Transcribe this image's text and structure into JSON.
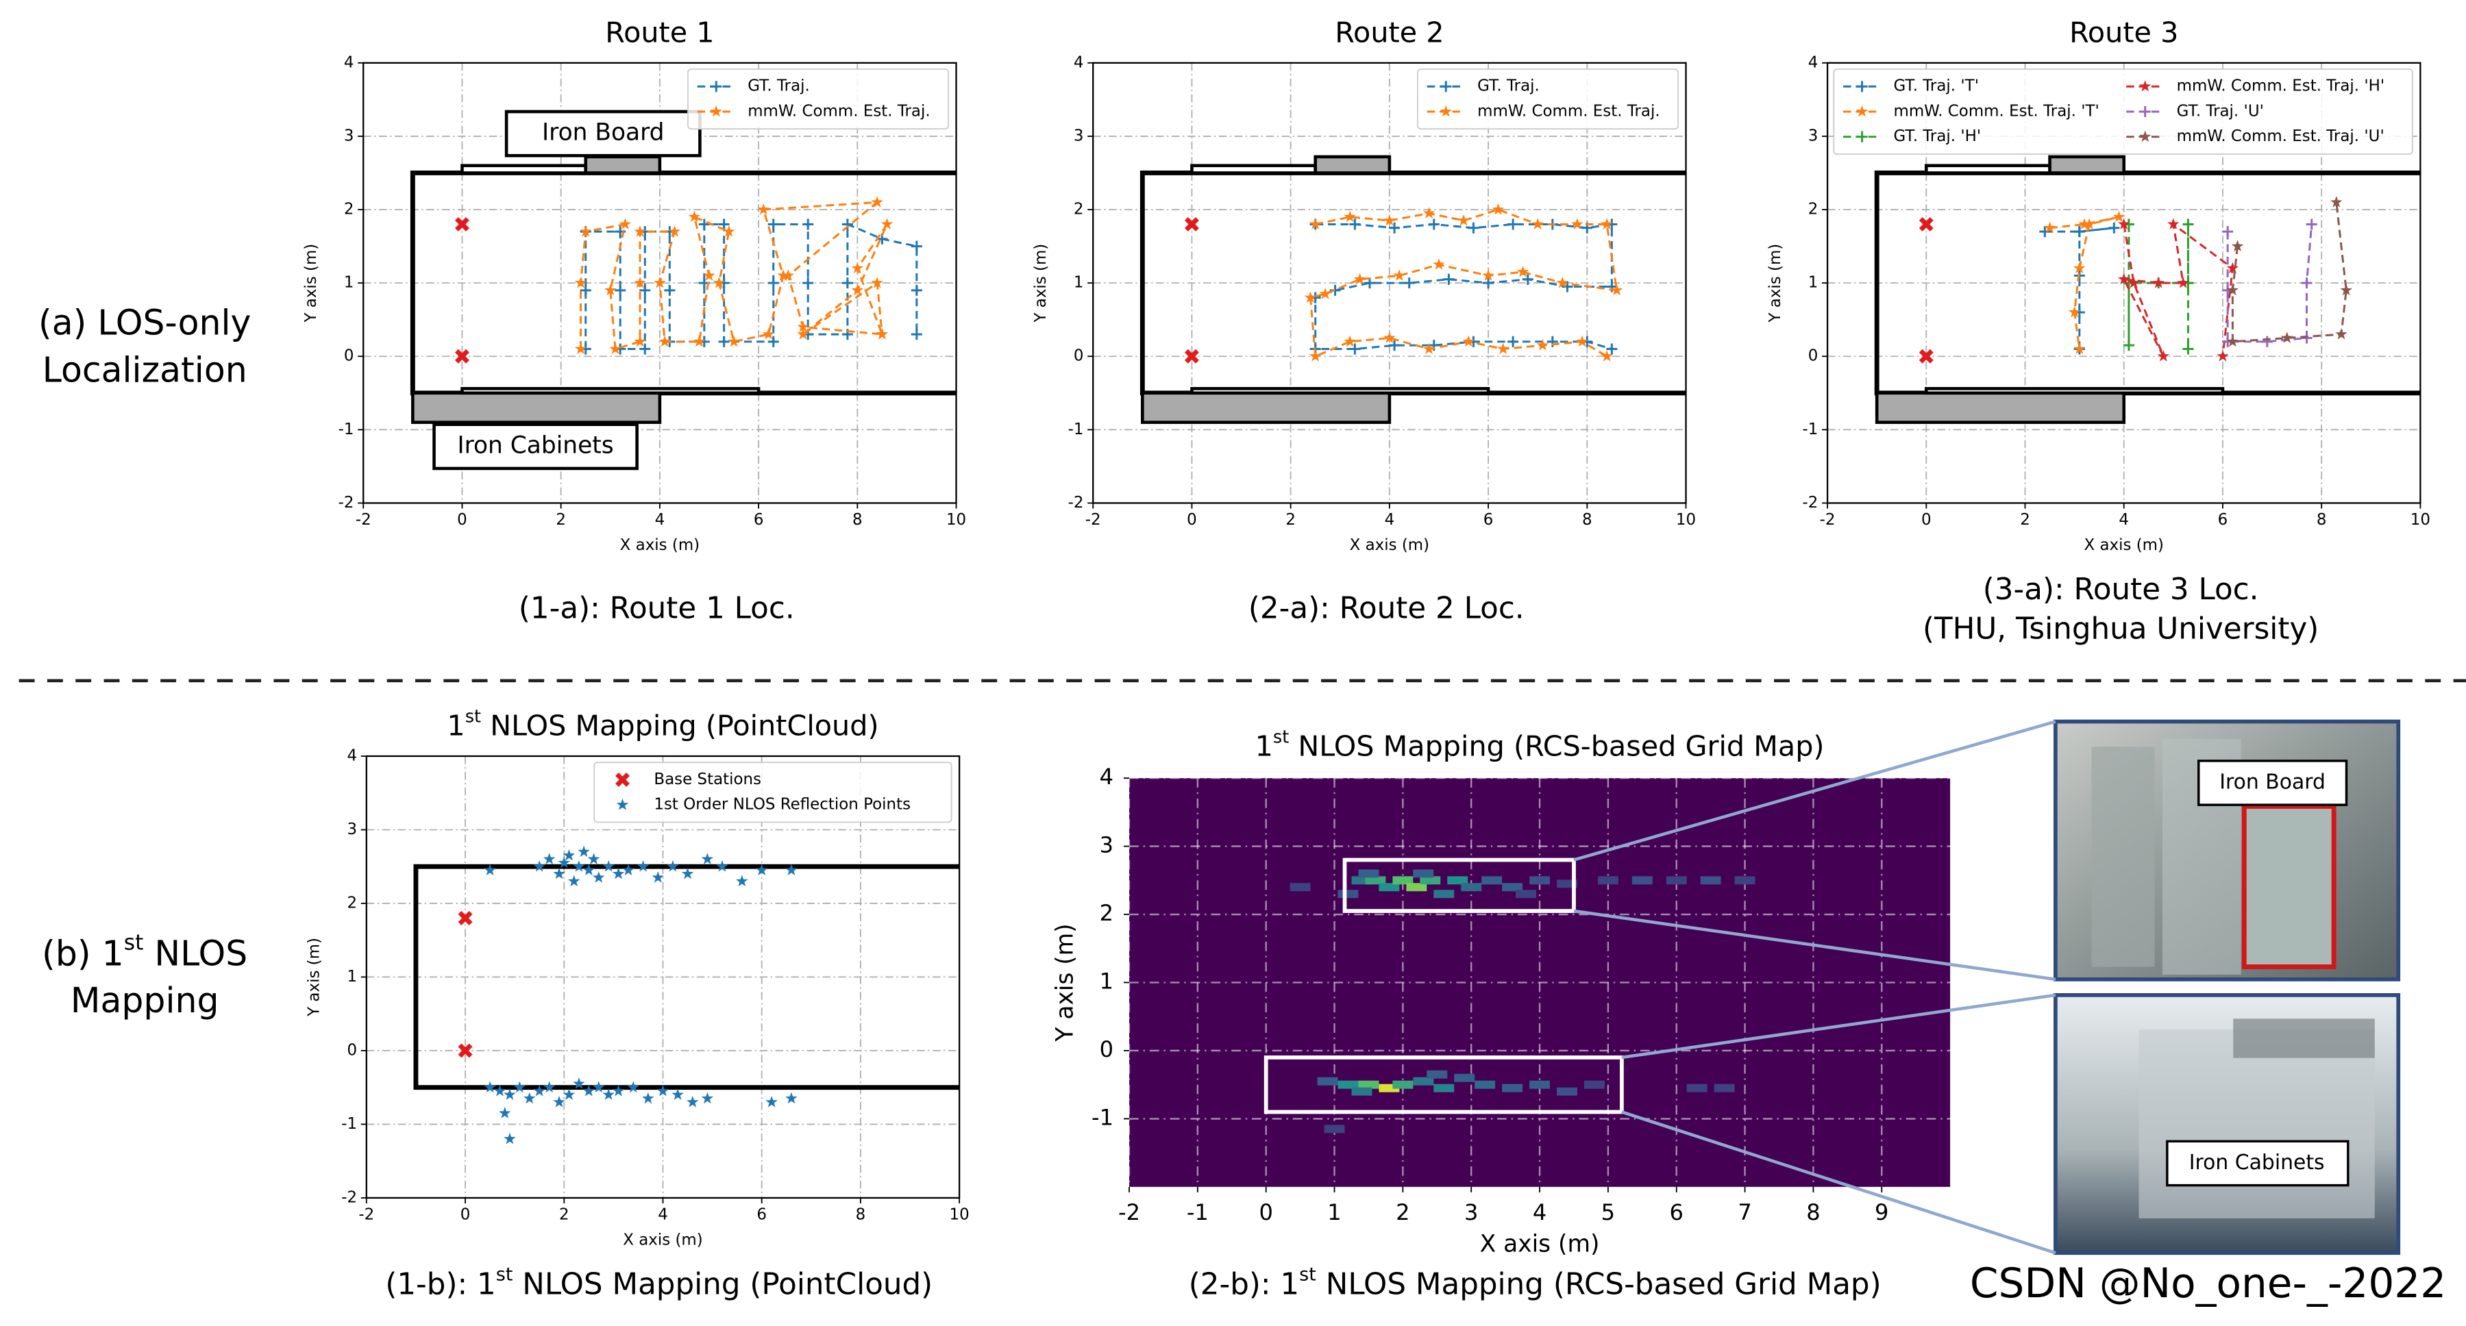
{
  "row_labels": [
    [
      "(a) LOS-only",
      "Localization"
    ],
    [
      [
        "(b) 1",
        "st",
        " NLOS"
      ],
      "Mapping"
    ]
  ],
  "photos": [
    {
      "label": "Iron Board"
    },
    {
      "label": "Iron Cabinets"
    }
  ],
  "watermark": "CSDN @No_one-_-2022",
  "chart_data": [
    {
      "type": "line",
      "title": "Route 1",
      "xlabel": "X axis (m)",
      "ylabel": "Y axis (m)",
      "caption": "(1-a): Route 1 Loc.",
      "xlim": [
        -2,
        10
      ],
      "ylim": [
        -2,
        4
      ],
      "xticks": [
        -2,
        0,
        2,
        4,
        6,
        8,
        10
      ],
      "yticks": [
        -2,
        -1,
        0,
        1,
        2,
        3,
        4
      ],
      "grid": true,
      "legend": "upper right",
      "legend_columns": 1,
      "annotations": [
        "Iron Board",
        "Iron Cabinets"
      ],
      "base_stations": {
        "color": "#e31a1c",
        "x": [
          0,
          0
        ],
        "y": [
          1.8,
          0
        ]
      },
      "series": [
        {
          "name": "GT. Traj.",
          "color": "#1f77b4",
          "marker": "+",
          "x": [
            2.5,
            2.5,
            2.5,
            3.2,
            3.2,
            3.2,
            3.7,
            3.7,
            3.7,
            4.2,
            4.2,
            4.2,
            4.9,
            4.9,
            4.9,
            5.3,
            5.3,
            5.3,
            6.3,
            6.3,
            6.3,
            7.0,
            7.0,
            7.0,
            7.8,
            7.8,
            7.8,
            8.5,
            9.2,
            9.2,
            9.2
          ],
          "y": [
            0.1,
            0.9,
            1.7,
            1.7,
            0.9,
            0.1,
            0.1,
            0.9,
            1.7,
            1.7,
            0.9,
            0.2,
            0.2,
            1.0,
            1.8,
            1.8,
            1.0,
            0.2,
            0.2,
            1.0,
            1.8,
            1.8,
            1.0,
            0.3,
            0.3,
            1.0,
            1.8,
            1.6,
            1.5,
            0.9,
            0.3
          ]
        },
        {
          "name": "mmW. Comm. Est. Traj.",
          "color": "#ff7f0e",
          "marker": "*",
          "x": [
            2.4,
            2.4,
            2.5,
            3.3,
            3.0,
            3.1,
            3.6,
            3.6,
            3.6,
            4.3,
            4.0,
            4.1,
            4.8,
            5.0,
            4.7,
            5.4,
            5.2,
            5.5,
            6.2,
            6.5,
            6.1,
            8.4,
            6.6,
            6.9,
            8.5,
            8.0,
            8.6,
            8.0,
            6.9,
            8.4,
            8.5
          ],
          "y": [
            0.1,
            1.0,
            1.7,
            1.8,
            0.9,
            0.1,
            0.2,
            1.0,
            1.7,
            1.7,
            1.0,
            0.2,
            0.2,
            1.1,
            1.9,
            1.7,
            1.0,
            0.2,
            0.3,
            1.1,
            2.0,
            2.1,
            1.1,
            0.4,
            0.3,
            1.2,
            1.8,
            0.9,
            0.3,
            1.0,
            0.3
          ]
        }
      ]
    },
    {
      "type": "line",
      "title": "Route 2",
      "xlabel": "X axis (m)",
      "ylabel": "Y axis (m)",
      "caption": "(2-a): Route 2 Loc.",
      "xlim": [
        -2,
        10
      ],
      "ylim": [
        -2,
        4
      ],
      "xticks": [
        -2,
        0,
        2,
        4,
        6,
        8,
        10
      ],
      "yticks": [
        -2,
        -1,
        0,
        1,
        2,
        3,
        4
      ],
      "grid": true,
      "legend": "upper right",
      "legend_columns": 1,
      "base_stations": {
        "color": "#e31a1c",
        "x": [
          0,
          0
        ],
        "y": [
          1.8,
          0
        ]
      },
      "series": [
        {
          "name": "GT. Traj.",
          "color": "#1f77b4",
          "marker": "+",
          "x": [
            2.5,
            3.3,
            4.1,
            4.9,
            5.7,
            6.5,
            7.3,
            8.0,
            8.5,
            8.5,
            7.6,
            6.8,
            6.0,
            5.2,
            4.4,
            3.6,
            2.9,
            2.5,
            2.5,
            3.3,
            4.1,
            4.9,
            5.7,
            6.5,
            7.3,
            8.0,
            8.5
          ],
          "y": [
            1.8,
            1.8,
            1.75,
            1.8,
            1.75,
            1.8,
            1.8,
            1.75,
            1.8,
            0.95,
            0.95,
            1.05,
            1.0,
            1.05,
            1.0,
            1.0,
            0.9,
            0.8,
            0.1,
            0.1,
            0.15,
            0.15,
            0.2,
            0.2,
            0.2,
            0.2,
            0.1
          ]
        },
        {
          "name": "mmW. Comm. Est. Traj.",
          "color": "#ff7f0e",
          "marker": "*",
          "x": [
            2.5,
            3.2,
            4.0,
            4.8,
            5.5,
            6.2,
            7.0,
            7.8,
            8.4,
            8.6,
            7.5,
            6.7,
            6.0,
            5.0,
            4.2,
            3.4,
            2.7,
            2.4,
            2.5,
            3.2,
            4.0,
            4.8,
            5.6,
            6.3,
            7.1,
            7.9,
            8.4
          ],
          "y": [
            1.8,
            1.9,
            1.85,
            1.95,
            1.85,
            2.0,
            1.8,
            1.8,
            1.8,
            0.9,
            1.0,
            1.15,
            1.1,
            1.25,
            1.1,
            1.05,
            0.85,
            0.8,
            0.0,
            0.2,
            0.25,
            0.1,
            0.2,
            0.1,
            0.15,
            0.2,
            0.0
          ]
        }
      ]
    },
    {
      "type": "line",
      "title": "Route 3",
      "xlabel": "X axis (m)",
      "ylabel": "Y axis (m)",
      "caption": "(3-a): Route 3 Loc.",
      "subcaption": "(THU, Tsinghua University)",
      "xlim": [
        -2,
        10
      ],
      "ylim": [
        -2,
        4
      ],
      "xticks": [
        -2,
        0,
        2,
        4,
        6,
        8,
        10
      ],
      "yticks": [
        -2,
        -1,
        0,
        1,
        2,
        3,
        4
      ],
      "grid": true,
      "legend": "upper right",
      "legend_columns": 2,
      "base_stations": {
        "color": "#e31a1c",
        "x": [
          0,
          0
        ],
        "y": [
          1.8,
          0
        ]
      },
      "series": [
        {
          "name": "GT. Traj. 'T'",
          "color": "#1f77b4",
          "marker": "+",
          "x": [
            2.4,
            3.1,
            3.8,
            3.1,
            3.1,
            3.1,
            3.1
          ],
          "y": [
            1.7,
            1.7,
            1.75,
            1.7,
            1.1,
            0.6,
            0.1
          ]
        },
        {
          "name": "mmW. Comm. Est. Traj. 'T'",
          "color": "#ff7f0e",
          "marker": "*",
          "x": [
            2.5,
            3.2,
            3.9,
            3.3,
            3.1,
            3.0,
            3.1
          ],
          "y": [
            1.75,
            1.8,
            1.9,
            1.8,
            1.2,
            0.6,
            0.1
          ]
        },
        {
          "name": "GT. Traj. 'H'",
          "color": "#2ca02c",
          "marker": "+",
          "x": [
            4.1,
            4.1,
            4.1,
            4.1,
            4.7,
            5.3,
            5.3,
            5.3,
            5.3
          ],
          "y": [
            1.8,
            1.0,
            0.15,
            1.0,
            1.0,
            1.0,
            1.8,
            1.0,
            0.1
          ]
        },
        {
          "name": "mmW. Comm. Est. Traj. 'H'",
          "color": "#d62728",
          "marker": "*",
          "x": [
            4.0,
            4.2,
            4.8,
            4.0,
            4.7,
            5.2,
            5.0,
            6.2,
            6.0
          ],
          "y": [
            1.8,
            1.0,
            0.0,
            1.05,
            1.0,
            1.0,
            1.8,
            1.2,
            0.0
          ]
        },
        {
          "name": "GT. Traj. 'U'",
          "color": "#9467bd",
          "marker": "+",
          "x": [
            6.1,
            6.1,
            6.1,
            6.9,
            7.7,
            7.7,
            7.8
          ],
          "y": [
            1.7,
            0.9,
            0.2,
            0.2,
            0.25,
            1.0,
            1.8
          ]
        },
        {
          "name": "mmW. Comm. Est. Traj. 'U'",
          "color": "#8c564b",
          "marker": "*",
          "x": [
            6.3,
            6.2,
            6.2,
            7.3,
            8.4,
            8.5,
            8.3
          ],
          "y": [
            1.5,
            0.9,
            0.2,
            0.25,
            0.3,
            0.9,
            2.1
          ]
        }
      ]
    },
    {
      "type": "scatter",
      "title": [
        "1",
        "st",
        " NLOS Mapping (PointCloud)"
      ],
      "xlabel": "X axis (m)",
      "ylabel": "Y axis (m)",
      "caption": [
        "(1-b): 1",
        "st",
        " NLOS Mapping (PointCloud)"
      ],
      "xlim": [
        -2,
        10
      ],
      "ylim": [
        -2,
        4
      ],
      "xticks": [
        -2,
        0,
        2,
        4,
        6,
        8,
        10
      ],
      "yticks": [
        -2,
        -1,
        0,
        1,
        2,
        3,
        4
      ],
      "grid": true,
      "legend": "upper right",
      "legend_columns": 1,
      "series": [
        {
          "name": "Base Stations",
          "color": "#e31a1c",
          "marker": "x",
          "x": [
            0,
            0
          ],
          "y": [
            1.8,
            0
          ]
        },
        {
          "name": "1st Order NLOS Reflection Points",
          "color": "#1f77b4",
          "marker": "*",
          "x": [
            0.5,
            1.5,
            1.7,
            1.9,
            2.0,
            2.1,
            2.2,
            2.3,
            2.4,
            2.5,
            2.6,
            2.7,
            2.9,
            3.1,
            3.3,
            3.6,
            3.9,
            4.2,
            4.5,
            4.9,
            5.2,
            5.6,
            6.0,
            6.6,
            0.5,
            0.7,
            0.9,
            1.1,
            1.3,
            1.5,
            1.7,
            1.9,
            2.1,
            2.3,
            2.5,
            2.7,
            2.9,
            3.1,
            3.4,
            3.7,
            4.0,
            4.3,
            4.6,
            4.9,
            6.2,
            6.6,
            0.9,
            0.8
          ],
          "y": [
            2.45,
            2.5,
            2.6,
            2.4,
            2.55,
            2.65,
            2.3,
            2.5,
            2.7,
            2.45,
            2.6,
            2.35,
            2.5,
            2.4,
            2.45,
            2.5,
            2.35,
            2.5,
            2.4,
            2.6,
            2.5,
            2.3,
            2.45,
            2.45,
            -0.5,
            -0.55,
            -0.6,
            -0.5,
            -0.65,
            -0.55,
            -0.5,
            -0.7,
            -0.6,
            -0.45,
            -0.55,
            -0.5,
            -0.6,
            -0.55,
            -0.5,
            -0.65,
            -0.55,
            -0.6,
            -0.7,
            -0.65,
            -0.7,
            -0.65,
            -1.2,
            -0.85
          ]
        }
      ]
    },
    {
      "type": "heatmap",
      "title": [
        "1",
        "st",
        " NLOS Mapping (RCS-based Grid Map)"
      ],
      "xlabel": "X axis (m)",
      "ylabel": "Y axis (m)",
      "caption": [
        "(2-b): 1",
        "st",
        " NLOS Mapping (RCS-based Grid Map)"
      ],
      "xlim": [
        -2,
        10
      ],
      "ylim": [
        -2,
        4
      ],
      "xticks": [
        -2,
        -1,
        0,
        1,
        2,
        3,
        4,
        5,
        6,
        7,
        8,
        9
      ],
      "yticks": [
        -1,
        0,
        1,
        2,
        3,
        4
      ],
      "grid": true,
      "cells": {
        "x": [
          1.4,
          1.6,
          1.8,
          2.0,
          2.2,
          2.4,
          2.6,
          2.8,
          3.0,
          3.3,
          3.6,
          4.0,
          4.4,
          5.0,
          5.5,
          6.0,
          6.5,
          7.0,
          1.5,
          2.3,
          1.2,
          3.8,
          0.5,
          0.9,
          1.2,
          1.5,
          1.8,
          2.0,
          2.3,
          2.6,
          2.9,
          3.2,
          3.6,
          4.0,
          4.4,
          4.8,
          1.4,
          2.5,
          6.3,
          6.7,
          1.0
        ],
        "y": [
          2.5,
          2.5,
          2.4,
          2.5,
          2.4,
          2.5,
          2.3,
          2.5,
          2.4,
          2.5,
          2.4,
          2.5,
          2.45,
          2.5,
          2.5,
          2.5,
          2.5,
          2.5,
          2.6,
          2.6,
          2.3,
          2.3,
          2.4,
          -0.45,
          -0.5,
          -0.5,
          -0.55,
          -0.5,
          -0.45,
          -0.55,
          -0.4,
          -0.5,
          -0.55,
          -0.5,
          -0.6,
          -0.5,
          -0.6,
          -0.35,
          -0.55,
          -0.55,
          -1.15
        ],
        "values": [
          0.4,
          0.6,
          0.5,
          0.7,
          0.8,
          0.6,
          0.4,
          0.5,
          0.35,
          0.3,
          0.3,
          0.25,
          0.2,
          0.2,
          0.25,
          0.2,
          0.25,
          0.2,
          0.3,
          0.3,
          0.25,
          0.2,
          0.2,
          0.3,
          0.5,
          0.7,
          0.95,
          0.6,
          0.4,
          0.45,
          0.3,
          0.35,
          0.3,
          0.3,
          0.25,
          0.2,
          0.4,
          0.3,
          0.2,
          0.2,
          0.2
        ]
      }
    }
  ]
}
